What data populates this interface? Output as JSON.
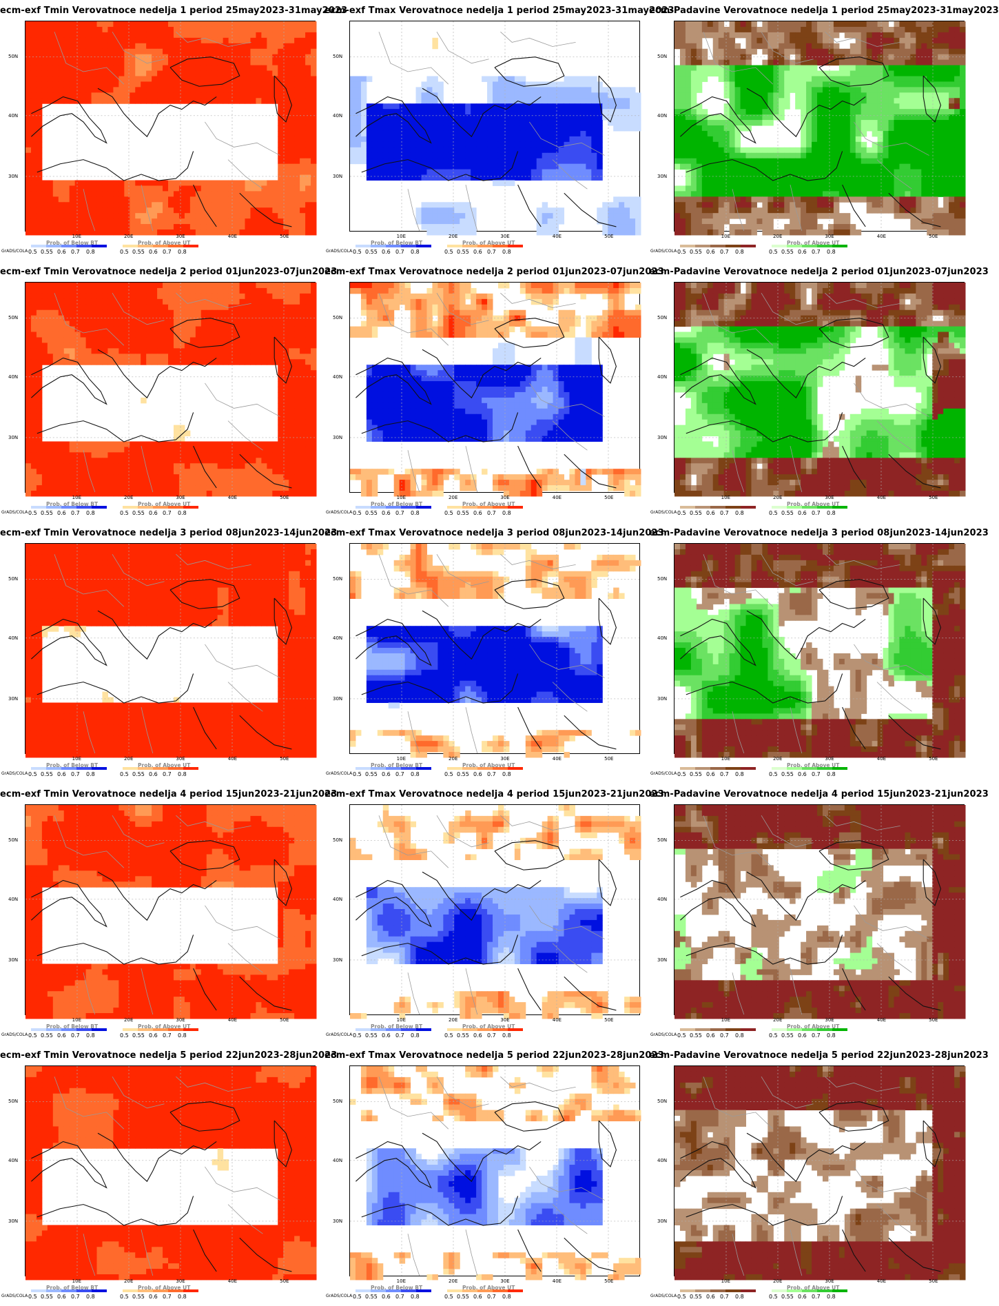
{
  "axes": {
    "lat_labels": [
      "50N",
      "40N",
      "30N"
    ],
    "lon_labels": [
      "10E",
      "20E",
      "30E",
      "40E",
      "50E"
    ]
  },
  "footer_credit": "GrADS/COLA",
  "legend_ticks": [
    "0.5",
    "0.55",
    "0.6",
    "0.7",
    "0.8"
  ],
  "legend_captions": {
    "tmin_below": "Prob. of Below BT",
    "tmin_above": "Prob. of Above UT",
    "tmax_below": "Prob. of Below BT",
    "tmax_above": "Prob. of Above UT",
    "pad_below": "",
    "pad_above": "Prob. of Above UT"
  },
  "palettes": {
    "cold": [
      "#c8dcff",
      "#9bb8ff",
      "#6f8cff",
      "#3a4cf2",
      "#0010e0"
    ],
    "warm": [
      "#ffe2a0",
      "#ffbd7a",
      "#ff9a55",
      "#ff6a2c",
      "#ff2800"
    ],
    "dry": [
      "#d9bb98",
      "#b89274",
      "#9a6848",
      "#7d4216",
      "#8e2424"
    ],
    "wet": [
      "#dcffcf",
      "#a4ff94",
      "#6be262",
      "#33cc33",
      "#00b400"
    ]
  },
  "rows": [
    {
      "week": 1,
      "panels": [
        {
          "title": "ecm-exf Tmin Verovatnoce nedelja 1 period 25may2023-31may2023",
          "var": "tmin",
          "levels": {
            "warm": 0.9,
            "cold": 0.35,
            "dry": 0,
            "wet": 0
          }
        },
        {
          "title": "ecm-exf Tmax Verovatnoce nedelja 1 period 25may2023-31may2023",
          "var": "tmax",
          "levels": {
            "warm": 0.35,
            "cold": 0.95,
            "dry": 0,
            "wet": 0
          }
        },
        {
          "title": "ecm-Padavine Verovatnoce nedelja 1 period 25may2023-31may2023",
          "var": "pad",
          "levels": {
            "warm": 0,
            "cold": 0,
            "dry": 0.6,
            "wet": 0.9
          }
        }
      ]
    },
    {
      "week": 2,
      "panels": [
        {
          "title": "ecm-exf Tmin Verovatnoce nedelja 2 period 01jun2023-07jun2023",
          "var": "tmin",
          "levels": {
            "warm": 0.95,
            "cold": 0.25,
            "dry": 0,
            "wet": 0
          }
        },
        {
          "title": "ecm-exf Tmax Verovatnoce nedelja 2 period 01jun2023-07jun2023",
          "var": "tmax",
          "levels": {
            "warm": 0.55,
            "cold": 0.85,
            "dry": 0,
            "wet": 0
          }
        },
        {
          "title": "ecm-Padavine Verovatnoce nedelja 2 period 01jun2023-07jun2023",
          "var": "pad",
          "levels": {
            "warm": 0,
            "cold": 0,
            "dry": 0.7,
            "wet": 0.8
          }
        }
      ]
    },
    {
      "week": 3,
      "panels": [
        {
          "title": "ecm-exf Tmin Verovatnoce nedelja 3 period 08jun2023-14jun2023",
          "var": "tmin",
          "levels": {
            "warm": 0.95,
            "cold": 0.3,
            "dry": 0,
            "wet": 0
          }
        },
        {
          "title": "ecm-exf Tmax Verovatnoce nedelja 3 period 08jun2023-14jun2023",
          "var": "tmax",
          "levels": {
            "warm": 0.5,
            "cold": 0.8,
            "dry": 0,
            "wet": 0
          }
        },
        {
          "title": "ecm-Padavine Verovatnoce nedelja 3 period 08jun2023-14jun2023",
          "var": "pad",
          "levels": {
            "warm": 0,
            "cold": 0,
            "dry": 0.8,
            "wet": 0.65
          }
        }
      ]
    },
    {
      "week": 4,
      "panels": [
        {
          "title": "ecm-exf Tmin Verovatnoce nedelja 4 period 15jun2023-21jun2023",
          "var": "tmin",
          "levels": {
            "warm": 0.92,
            "cold": 0.15,
            "dry": 0,
            "wet": 0
          }
        },
        {
          "title": "ecm-exf Tmax Verovatnoce nedelja 4 period 15jun2023-21jun2023",
          "var": "tmax",
          "levels": {
            "warm": 0.5,
            "cold": 0.7,
            "dry": 0,
            "wet": 0
          }
        },
        {
          "title": "ecm-Padavine Verovatnoce nedelja 4 period 15jun2023-21jun2023",
          "var": "pad",
          "levels": {
            "warm": 0,
            "cold": 0,
            "dry": 0.85,
            "wet": 0.45
          }
        }
      ]
    },
    {
      "week": 5,
      "panels": [
        {
          "title": "ecm-exf Tmin Verovatnoce nedelja 5 period 22jun2023-28jun2023",
          "var": "tmin",
          "levels": {
            "warm": 0.95,
            "cold": 0.1,
            "dry": 0,
            "wet": 0
          }
        },
        {
          "title": "ecm-exf Tmax Verovatnoce nedelja 5 period 22jun2023-28jun2023",
          "var": "tmax",
          "levels": {
            "warm": 0.5,
            "cold": 0.6,
            "dry": 0,
            "wet": 0
          }
        },
        {
          "title": "ecm-Padavine Verovatnoce nedelja 5 period 22jun2023-28jun2023",
          "var": "pad",
          "levels": {
            "warm": 0,
            "cold": 0,
            "dry": 0.9,
            "wet": 0.4
          }
        }
      ]
    }
  ]
}
